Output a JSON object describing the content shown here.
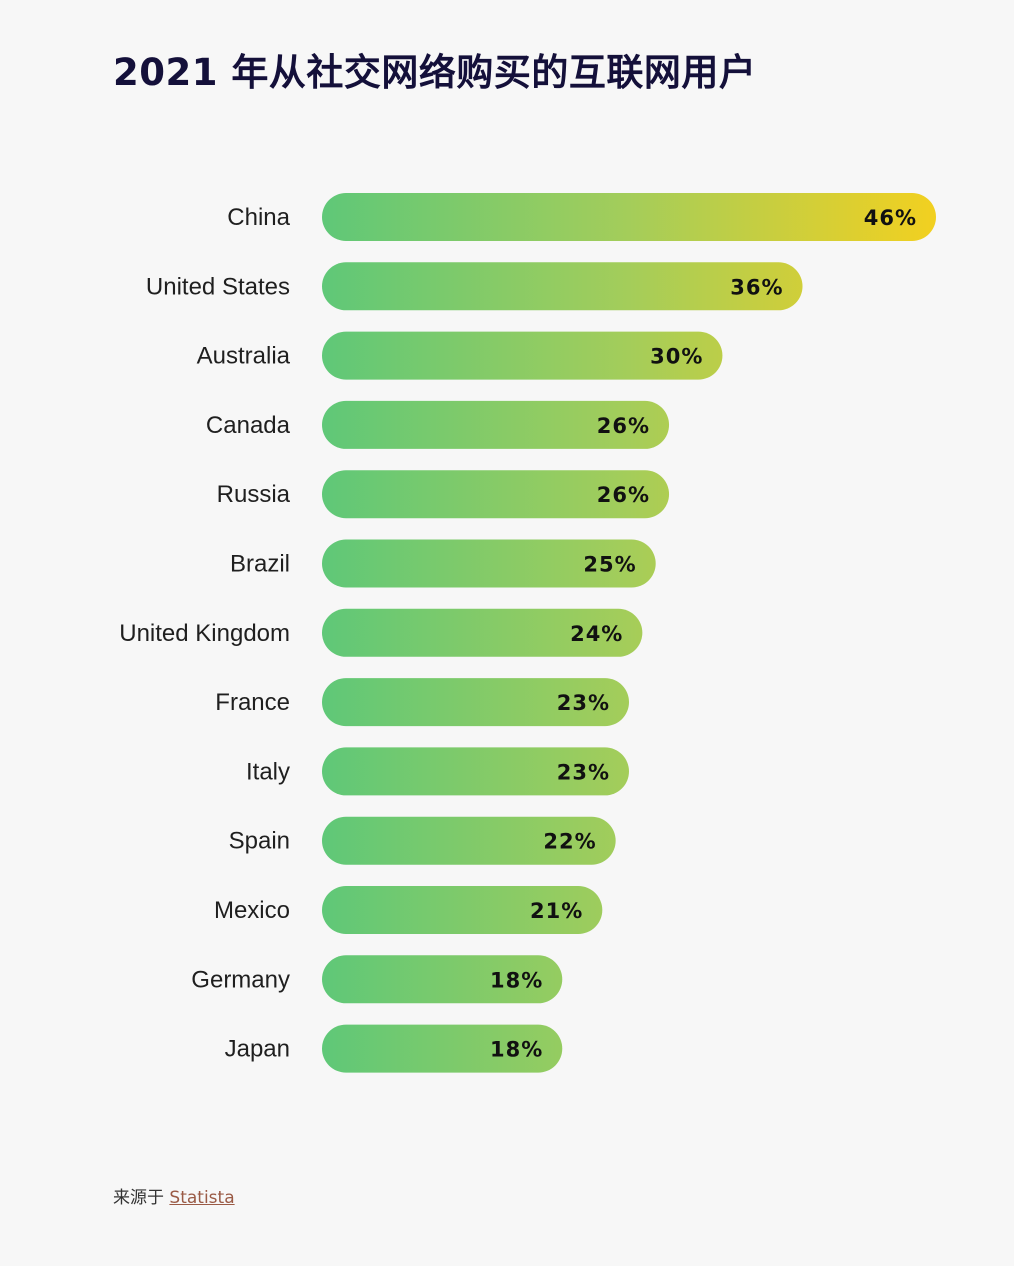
{
  "title": "2021 年从社交网络购买的互联网用户",
  "source": {
    "prefix": "来源于",
    "link_text": "Statista"
  },
  "colors": {
    "bar_start": "#5fc878",
    "bar_mid": "#a4cd5a",
    "bar_end": "#f2d020",
    "background": "#f7f7f7",
    "title": "#14103a"
  },
  "chart_data": {
    "type": "bar",
    "orientation": "horizontal",
    "title": "2021 年从社交网络购买的互联网用户",
    "categories": [
      "China",
      "United States",
      "Australia",
      "Canada",
      "Russia",
      "Brazil",
      "United Kingdom",
      "France",
      "Italy",
      "Spain",
      "Mexico",
      "Germany",
      "Japan"
    ],
    "values": [
      46,
      36,
      30,
      26,
      26,
      25,
      24,
      23,
      23,
      22,
      21,
      18,
      18
    ],
    "value_labels": [
      "46%",
      "36%",
      "30%",
      "26%",
      "26%",
      "25%",
      "24%",
      "23%",
      "23%",
      "22%",
      "21%",
      "18%",
      "18%"
    ],
    "unit": "%",
    "xlabel": "",
    "ylabel": "",
    "grid": false,
    "legend": "none"
  }
}
